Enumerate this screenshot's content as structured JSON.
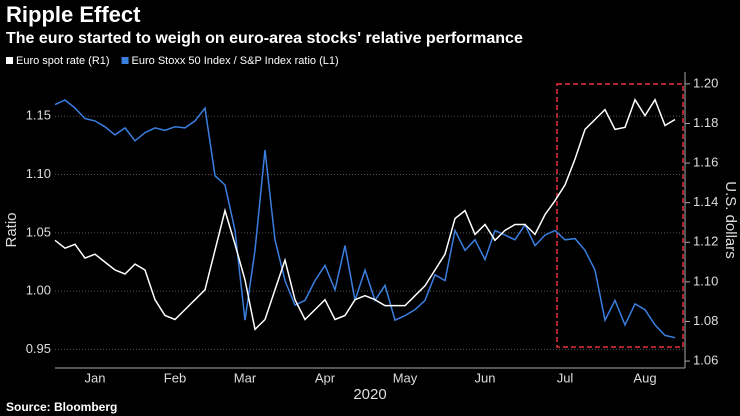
{
  "chart_data": {
    "type": "line",
    "title": "Ripple Effect",
    "subtitle": "The euro started to weigh on euro-area stocks' relative performance",
    "source": "Source: Bloomberg",
    "xlabel": "2020",
    "ylabel": "Ratio",
    "y2label": "U.S. dollars",
    "categories": [
      null,
      null,
      null,
      null,
      "Jan",
      null,
      null,
      null,
      null,
      null,
      null,
      null,
      "Feb",
      null,
      null,
      null,
      null,
      null,
      null,
      "Mar",
      null,
      null,
      null,
      null,
      null,
      null,
      null,
      "Apr",
      null,
      null,
      null,
      null,
      null,
      null,
      null,
      "May",
      null,
      null,
      null,
      null,
      null,
      null,
      null,
      "Jun",
      null,
      null,
      null,
      null,
      null,
      null,
      null,
      "Jul",
      null,
      null,
      null,
      null,
      null,
      null,
      null,
      "Aug",
      null,
      null,
      null
    ],
    "series": [
      {
        "name": "Euro spot rate (R1)",
        "color": "#ffffff",
        "axis": "y2",
        "values": [
          1.121,
          1.117,
          1.119,
          1.112,
          1.114,
          1.11,
          1.106,
          1.104,
          1.109,
          1.106,
          1.091,
          1.083,
          1.081,
          1.086,
          1.091,
          1.096,
          1.116,
          1.136,
          1.119,
          1.101,
          1.076,
          1.081,
          1.096,
          1.111,
          1.091,
          1.081,
          1.086,
          1.091,
          1.081,
          1.083,
          1.091,
          1.093,
          1.091,
          1.088,
          1.088,
          1.088,
          1.093,
          1.098,
          1.106,
          1.114,
          1.132,
          1.136,
          1.124,
          1.129,
          1.121,
          1.126,
          1.129,
          1.129,
          1.124,
          1.134,
          1.141,
          1.149,
          1.162,
          1.177,
          1.182,
          1.187,
          1.177,
          1.178,
          1.192,
          1.184,
          1.192,
          1.179,
          1.182
        ]
      },
      {
        "name": "Euro Stoxx 50 Index / S&P Index ratio (L1)",
        "color": "#3a7fe0",
        "axis": "y",
        "values": [
          1.16,
          1.164,
          1.157,
          1.148,
          1.146,
          1.141,
          1.134,
          1.14,
          1.129,
          1.136,
          1.14,
          1.138,
          1.141,
          1.14,
          1.146,
          1.157,
          1.099,
          1.091,
          1.052,
          0.975,
          1.035,
          1.121,
          1.044,
          1.009,
          0.988,
          0.992,
          1.009,
          1.022,
          1.001,
          1.039,
          0.992,
          1.018,
          0.992,
          1.005,
          0.975,
          0.979,
          0.984,
          0.992,
          1.014,
          1.009,
          1.052,
          1.035,
          1.044,
          1.027,
          1.052,
          1.048,
          1.044,
          1.057,
          1.039,
          1.048,
          1.052,
          1.044,
          1.045,
          1.035,
          1.018,
          0.975,
          0.992,
          0.971,
          0.989,
          0.984,
          0.971,
          0.962,
          0.96
        ]
      }
    ],
    "ylim": [
      0.934,
      1.188
    ],
    "yticks": [
      0.95,
      {
        "value": 1.0,
        "label": "1.00"
      },
      1.05,
      {
        "value": 1.1,
        "label": "1.10"
      },
      1.15
    ],
    "y2lim": [
      1.0565,
      1.206
    ],
    "y2ticks": [
      1.06,
      1.08,
      {
        "value": 1.1,
        "label": "1.10"
      },
      1.12,
      1.14,
      1.16,
      1.18,
      {
        "value": 1.2,
        "label": "1.20"
      }
    ],
    "grid": true
  }
}
